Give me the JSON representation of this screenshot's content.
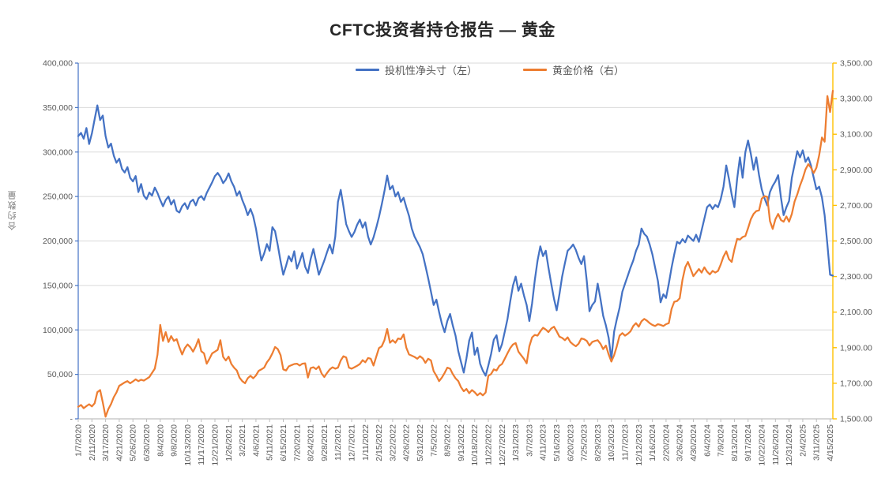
{
  "chart_data": {
    "type": "line",
    "title": "CFTC投资者持仓报告 — 黄金",
    "legend_position": "top",
    "grid": "horizontal",
    "colors": {
      "series_left": "#4472C4",
      "series_right": "#ED7D31",
      "left_axis_line": "#4472C4",
      "right_axis_line": "#FFC000",
      "bottom_axis_line": "#BFBFBF",
      "gridline": "#D9D9D9",
      "tick_label": "#595959",
      "title_text": "#262626"
    },
    "left_axis": {
      "title": "合约数量",
      "min": 0,
      "max": 400000,
      "step": 50000,
      "tick_labels": [
        "-",
        "50,000",
        "100,000",
        "150,000",
        "200,000",
        "250,000",
        "300,000",
        "350,000",
        "400,000"
      ]
    },
    "right_axis": {
      "min": 1500,
      "max": 3500,
      "step": 200,
      "tick_labels": [
        "1,500.00",
        "1,700.00",
        "1,900.00",
        "2,100.00",
        "2,300.00",
        "2,500.00",
        "2,700.00",
        "2,900.00",
        "3,100.00",
        "3,300.00",
        "3,500.00"
      ]
    },
    "x_axis": {
      "label_every_n_points": 5,
      "tick_labels": [
        "1/7/2020",
        "2/11/2020",
        "3/17/2020",
        "4/21/2020",
        "5/26/2020",
        "6/30/2020",
        "8/4/2020",
        "9/8/2020",
        "10/13/2020",
        "11/17/2020",
        "12/21/2020",
        "1/26/2021",
        "3/2/2021",
        "4/6/2021",
        "5/11/2021",
        "6/15/2021",
        "7/20/2021",
        "8/24/2021",
        "9/28/2021",
        "11/2/2021",
        "12/7/2021",
        "1/11/2022",
        "2/15/2022",
        "3/22/2022",
        "4/26/2022",
        "5/31/2022",
        "7/5/2022",
        "8/9/2022",
        "9/13/2022",
        "10/18/2022",
        "11/22/2022",
        "12/27/2022",
        "1/31/2023",
        "3/7/2023",
        "4/11/2023",
        "5/16/2023",
        "6/20/2023",
        "7/25/2023",
        "8/29/2023",
        "10/3/2023",
        "11/7/2023",
        "12/12/2023",
        "1/16/2024",
        "2/20/2024",
        "3/26/2024",
        "4/30/2024",
        "6/4/2024",
        "7/9/2024",
        "8/13/2024",
        "9/17/2024",
        "10/22/2024",
        "11/26/2024",
        "12/31/2024",
        "2/4/2025",
        "3/11/2025",
        "4/15/2025"
      ]
    },
    "series": [
      {
        "name": "投机性净头寸（左）",
        "axis": "left",
        "color": "#4472C4",
        "values": [
          318000,
          321500,
          315000,
          327000,
          309000,
          321000,
          337000,
          352500,
          336000,
          341000,
          318000,
          305000,
          309500,
          296000,
          288000,
          292500,
          281000,
          277000,
          283000,
          271000,
          267000,
          273000,
          255000,
          264000,
          251000,
          247000,
          254500,
          251000,
          260000,
          254000,
          246000,
          239000,
          246000,
          250000,
          241000,
          246000,
          234000,
          232000,
          239000,
          242500,
          236000,
          244000,
          246500,
          240000,
          248000,
          250500,
          246000,
          254000,
          260000,
          266000,
          273000,
          276500,
          272000,
          265000,
          269000,
          276000,
          267000,
          261000,
          251000,
          256000,
          246000,
          238500,
          229000,
          236000,
          228000,
          214000,
          195000,
          178000,
          186000,
          196500,
          189000,
          215500,
          211000,
          195000,
          177000,
          162000,
          172000,
          183000,
          177000,
          188500,
          169000,
          177000,
          186500,
          171000,
          164000,
          179500,
          191000,
          177000,
          162000,
          170000,
          178000,
          187500,
          196000,
          186000,
          205000,
          244000,
          257500,
          239000,
          219000,
          211000,
          204500,
          210000,
          218000,
          224000,
          215000,
          221000,
          205000,
          196000,
          204000,
          215000,
          227000,
          241000,
          256000,
          273500,
          258000,
          262000,
          250000,
          255000,
          244000,
          248500,
          238000,
          228000,
          214000,
          205000,
          199000,
          193000,
          185000,
          172000,
          158000,
          143000,
          128000,
          134000,
          120000,
          107000,
          97500,
          110000,
          118000,
          105000,
          93500,
          76000,
          64000,
          52000,
          68000,
          88000,
          97000,
          72000,
          80000,
          62000,
          54000,
          48500,
          60000,
          73000,
          89000,
          94000,
          76000,
          84000,
          98000,
          112000,
          132000,
          150000,
          160000,
          144000,
          152000,
          139000,
          128000,
          110000,
          130000,
          156000,
          178000,
          194000,
          183000,
          189000,
          170000,
          152000,
          135000,
          122000,
          140000,
          160000,
          175000,
          189000,
          192000,
          196000,
          190000,
          181000,
          174000,
          183000,
          155000,
          121000,
          128000,
          132000,
          152000,
          135000,
          116000,
          105000,
          91000,
          67000,
          98000,
          112000,
          125000,
          143000,
          152000,
          161000,
          170000,
          178000,
          189000,
          196000,
          214000,
          208000,
          205000,
          196000,
          185000,
          170000,
          155000,
          131000,
          140000,
          136000,
          152000,
          170000,
          185000,
          199000,
          197000,
          202000,
          198500,
          206000,
          203000,
          200000,
          207000,
          199000,
          212000,
          225000,
          238000,
          241000,
          236000,
          240500,
          238000,
          247000,
          261000,
          285000,
          270000,
          252000,
          238000,
          270000,
          294000,
          271000,
          300000,
          313000,
          298000,
          280000,
          294000,
          274000,
          258000,
          248000,
          240000,
          255000,
          262000,
          267000,
          274000,
          249000,
          229000,
          238000,
          245000,
          271000,
          286000,
          301000,
          294000,
          302000,
          289000,
          294000,
          285000,
          271000,
          258000,
          261000,
          249000,
          229000,
          196000,
          162000,
          161000
        ]
      },
      {
        "name": "黄金价格（右）",
        "axis": "right",
        "color": "#ED7D31",
        "values": [
          1568,
          1578,
          1560,
          1572,
          1582,
          1570,
          1588,
          1650,
          1662,
          1592,
          1512,
          1555,
          1583,
          1622,
          1648,
          1686,
          1695,
          1705,
          1712,
          1700,
          1710,
          1722,
          1712,
          1720,
          1715,
          1725,
          1735,
          1758,
          1782,
          1860,
          2028,
          1938,
          1988,
          1932,
          1965,
          1938,
          1948,
          1902,
          1862,
          1898,
          1918,
          1902,
          1878,
          1908,
          1948,
          1880,
          1868,
          1810,
          1838,
          1868,
          1878,
          1888,
          1942,
          1848,
          1828,
          1850,
          1808,
          1788,
          1772,
          1732,
          1712,
          1700,
          1728,
          1742,
          1728,
          1744,
          1770,
          1778,
          1788,
          1818,
          1838,
          1868,
          1904,
          1892,
          1858,
          1778,
          1772,
          1795,
          1802,
          1808,
          1810,
          1800,
          1810,
          1812,
          1732,
          1785,
          1790,
          1780,
          1795,
          1755,
          1735,
          1758,
          1778,
          1790,
          1782,
          1788,
          1828,
          1852,
          1845,
          1788,
          1782,
          1790,
          1798,
          1808,
          1830,
          1818,
          1842,
          1838,
          1800,
          1850,
          1898,
          1908,
          1942,
          2005,
          1928,
          1942,
          1928,
          1952,
          1948,
          1975,
          1900,
          1862,
          1855,
          1848,
          1838,
          1852,
          1840,
          1815,
          1838,
          1828,
          1768,
          1742,
          1712,
          1732,
          1758,
          1788,
          1782,
          1752,
          1728,
          1712,
          1678,
          1655,
          1668,
          1644,
          1662,
          1650,
          1632,
          1645,
          1632,
          1648,
          1742,
          1752,
          1778,
          1772,
          1798,
          1808,
          1838,
          1868,
          1898,
          1918,
          1926,
          1878,
          1858,
          1838,
          1812,
          1908,
          1958,
          1972,
          1968,
          1992,
          2012,
          2002,
          1988,
          2008,
          2018,
          1992,
          1962,
          1955,
          1942,
          1958,
          1932,
          1918,
          1908,
          1922,
          1952,
          1948,
          1938,
          1912,
          1932,
          1938,
          1942,
          1922,
          1892,
          1912,
          1862,
          1822,
          1858,
          1908,
          1968,
          1982,
          1968,
          1978,
          1992,
          2022,
          2038,
          2018,
          2048,
          2062,
          2052,
          2038,
          2028,
          2022,
          2032,
          2028,
          2022,
          2032,
          2038,
          2118,
          2158,
          2162,
          2178,
          2282,
          2352,
          2382,
          2342,
          2302,
          2322,
          2342,
          2322,
          2352,
          2328,
          2312,
          2332,
          2322,
          2332,
          2368,
          2412,
          2442,
          2398,
          2382,
          2452,
          2512,
          2508,
          2522,
          2528,
          2572,
          2622,
          2652,
          2668,
          2672,
          2738,
          2752,
          2748,
          2612,
          2568,
          2622,
          2652,
          2618,
          2608,
          2638,
          2608,
          2652,
          2722,
          2762,
          2812,
          2852,
          2902,
          2932,
          2912,
          2882,
          2912,
          2982,
          3082,
          3058,
          3315,
          3225,
          3345
        ]
      }
    ]
  }
}
